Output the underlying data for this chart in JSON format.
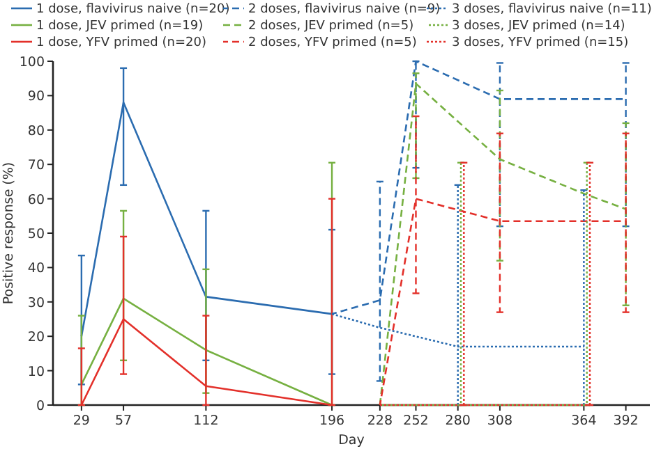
{
  "chart_data": {
    "type": "line",
    "xlabel": "Day",
    "ylabel": "Positive response (%)",
    "xlim": [
      10,
      408
    ],
    "ylim": [
      0,
      100
    ],
    "xticks": [
      29,
      57,
      112,
      196,
      228,
      252,
      280,
      308,
      364,
      392
    ],
    "yticks": [
      0,
      10,
      20,
      30,
      40,
      50,
      60,
      70,
      80,
      90,
      100
    ],
    "grid": false,
    "legend": "top",
    "marker": "none",
    "series": [
      {
        "name": "1 dose, flavivirus naive (n=20)",
        "color": "#2b6cb0",
        "line_style": "solid",
        "x": [
          29,
          57,
          112,
          196
        ],
        "values": [
          20,
          88,
          31.5,
          26.5
        ],
        "errors": [
          [
            6,
            43.5
          ],
          [
            64,
            98
          ],
          [
            13,
            56.5
          ],
          [
            9,
            51
          ]
        ]
      },
      {
        "name": "1 dose, JEV primed (n=19)",
        "color": "#76b041",
        "line_style": "solid",
        "x": [
          29,
          57,
          112,
          196
        ],
        "values": [
          6,
          31,
          16,
          0
        ],
        "errors": [
          [
            0,
            26
          ],
          [
            13,
            56.5
          ],
          [
            3.5,
            39.5
          ],
          [
            0,
            70.5
          ]
        ]
      },
      {
        "name": "1 dose, YFV primed (n=20)",
        "color": "#e3302a",
        "line_style": "solid",
        "x": [
          29,
          57,
          112,
          196
        ],
        "values": [
          0,
          25,
          5.5,
          0
        ],
        "errors": [
          [
            0,
            16.5
          ],
          [
            9,
            49
          ],
          [
            0,
            26
          ],
          [
            0,
            60
          ]
        ]
      },
      {
        "name": "2 doses, flavivirus naive (n=9)",
        "color": "#2b6cb0",
        "line_style": "dashed",
        "x": [
          196,
          228,
          252,
          308,
          392
        ],
        "values": [
          26.5,
          30.5,
          100,
          89,
          89
        ],
        "errors": [
          null,
          [
            7,
            65
          ],
          [
            69,
            100
          ],
          [
            52,
            99.5
          ],
          [
            52,
            99.5
          ]
        ]
      },
      {
        "name": "2 doses, JEV primed (n=5)",
        "color": "#76b041",
        "line_style": "dashed",
        "x": [
          228,
          252,
          308,
          364,
          392
        ],
        "values": [
          0,
          93.5,
          71.5,
          61.5,
          57
        ],
        "errors": [
          null,
          [
            66,
            96.5
          ],
          [
            42,
            91.5
          ],
          null,
          [
            29,
            82
          ]
        ]
      },
      {
        "name": "2 doses, YFV primed (n=5)",
        "color": "#e3302a",
        "line_style": "dashed",
        "x": [
          228,
          252,
          308,
          392
        ],
        "values": [
          0,
          60,
          53.5,
          53.5
        ],
        "errors": [
          null,
          [
            32.5,
            84
          ],
          [
            27,
            79
          ],
          [
            27,
            79
          ]
        ]
      },
      {
        "name": "3 doses, flavivirus naive (n=11)",
        "color": "#2b6cb0",
        "line_style": "dotted",
        "x": [
          196,
          228,
          280,
          364
        ],
        "values": [
          26.5,
          22.5,
          17,
          17
        ],
        "errors": [
          null,
          null,
          [
            0,
            64
          ],
          [
            0,
            62.5
          ]
        ]
      },
      {
        "name": "3 doses, JEV primed (n=14)",
        "color": "#76b041",
        "line_style": "dotted",
        "x": [
          228,
          282,
          366
        ],
        "values": [
          0,
          0,
          0
        ],
        "errors": [
          null,
          [
            0,
            70.5
          ],
          [
            0,
            70.5
          ]
        ]
      },
      {
        "name": "3 doses, YFV primed (n=15)",
        "color": "#e3302a",
        "line_style": "dotted",
        "x": [
          228,
          284,
          368
        ],
        "values": [
          0,
          0,
          0
        ],
        "errors": [
          null,
          [
            0,
            70.5
          ],
          [
            0,
            70.5
          ]
        ]
      }
    ]
  }
}
